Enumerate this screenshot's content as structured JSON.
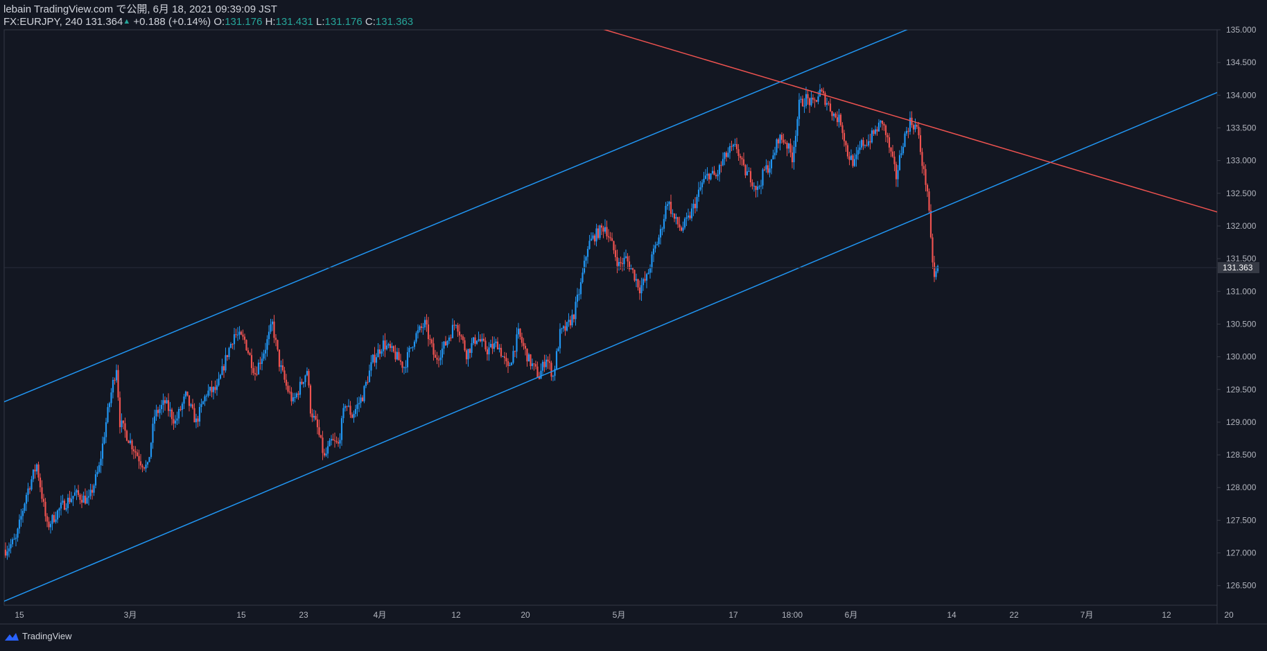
{
  "header": {
    "publisher": "lebain TradingView.com で公開, 6月 18, 2021 09:39:09 JST",
    "symbol": "FX:EURJPY, 240",
    "last": "131.364",
    "change": "+0.188 (+0.14%)",
    "o_label": "O:",
    "o_value": "131.176",
    "h_label": "H:",
    "h_value": "131.431",
    "l_label": "L:",
    "l_value": "131.176",
    "c_label": "C:",
    "c_value": "131.363"
  },
  "footer": {
    "brand": "TradingView"
  },
  "colors": {
    "background": "#131722",
    "up": "#2196f3",
    "down": "#ef5350",
    "grid_text": "#b2b5be",
    "axis_line": "#363a45"
  },
  "chart_data": {
    "type": "candlestick",
    "symbol": "FX:EURJPY",
    "interval": "240",
    "ylim": [
      126.2,
      135.0
    ],
    "y_ticks": [
      "126.500",
      "127.000",
      "127.500",
      "128.000",
      "128.500",
      "129.000",
      "129.500",
      "130.000",
      "130.500",
      "131.000",
      "131.500",
      "132.000",
      "132.500",
      "133.000",
      "133.500",
      "134.000",
      "134.500",
      "135.000"
    ],
    "x_ticks": [
      {
        "label": "15",
        "idx": 4
      },
      {
        "label": "3月",
        "idx": 36
      },
      {
        "label": "15",
        "idx": 68
      },
      {
        "label": "23",
        "idx": 86
      },
      {
        "label": "4月",
        "idx": 108
      },
      {
        "label": "12",
        "idx": 130
      },
      {
        "label": "20",
        "idx": 150
      },
      {
        "label": "5月",
        "idx": 177
      },
      {
        "label": "17",
        "idx": 210
      },
      {
        "label": "18:00",
        "idx": 227
      },
      {
        "label": "6月",
        "idx": 244
      },
      {
        "label": "14",
        "idx": 273
      },
      {
        "label": "22",
        "idx": 291
      },
      {
        "label": "7月",
        "idx": 312
      },
      {
        "label": "12",
        "idx": 335
      },
      {
        "label": "20",
        "idx": 353
      }
    ],
    "last_price": "131.363",
    "price_path": [
      [
        0,
        127.05
      ],
      [
        3,
        127.2
      ],
      [
        6,
        127.9
      ],
      [
        9,
        128.35
      ],
      [
        12,
        127.4
      ],
      [
        16,
        127.7
      ],
      [
        20,
        127.9
      ],
      [
        24,
        127.8
      ],
      [
        27,
        128.3
      ],
      [
        29,
        129.0
      ],
      [
        31,
        129.6
      ],
      [
        32,
        129.85
      ],
      [
        33,
        129.0
      ],
      [
        36,
        128.7
      ],
      [
        39,
        128.4
      ],
      [
        41,
        128.3
      ],
      [
        43,
        129.1
      ],
      [
        46,
        129.3
      ],
      [
        49,
        129.0
      ],
      [
        52,
        129.4
      ],
      [
        55,
        129.0
      ],
      [
        58,
        129.45
      ],
      [
        61,
        129.5
      ],
      [
        64,
        130.05
      ],
      [
        66,
        130.35
      ],
      [
        69,
        130.25
      ],
      [
        72,
        129.75
      ],
      [
        75,
        130.15
      ],
      [
        77,
        130.5
      ],
      [
        79,
        129.9
      ],
      [
        81,
        129.55
      ],
      [
        83,
        129.3
      ],
      [
        85,
        129.55
      ],
      [
        87,
        129.8
      ],
      [
        88,
        129.2
      ],
      [
        90,
        128.9
      ],
      [
        92,
        128.45
      ],
      [
        94,
        128.7
      ],
      [
        96,
        128.65
      ],
      [
        98,
        129.3
      ],
      [
        100,
        129.1
      ],
      [
        103,
        129.4
      ],
      [
        106,
        129.95
      ],
      [
        109,
        130.2
      ],
      [
        112,
        130.05
      ],
      [
        115,
        129.85
      ],
      [
        118,
        130.3
      ],
      [
        121,
        130.5
      ],
      [
        124,
        129.95
      ],
      [
        127,
        130.2
      ],
      [
        130,
        130.55
      ],
      [
        133,
        130.05
      ],
      [
        136,
        130.3
      ],
      [
        139,
        130.1
      ],
      [
        142,
        130.2
      ],
      [
        145,
        129.8
      ],
      [
        148,
        130.35
      ],
      [
        151,
        129.95
      ],
      [
        154,
        129.7
      ],
      [
        156,
        130.0
      ],
      [
        158,
        129.7
      ],
      [
        160,
        130.35
      ],
      [
        162,
        130.45
      ],
      [
        164,
        130.65
      ],
      [
        166,
        131.1
      ],
      [
        168,
        131.7
      ],
      [
        170,
        131.85
      ],
      [
        173,
        132.0
      ],
      [
        175,
        131.7
      ],
      [
        177,
        131.4
      ],
      [
        179,
        131.5
      ],
      [
        181,
        131.3
      ],
      [
        183,
        131.05
      ],
      [
        185,
        131.2
      ],
      [
        187,
        131.6
      ],
      [
        189,
        131.9
      ],
      [
        191,
        132.4
      ],
      [
        193,
        132.1
      ],
      [
        195,
        131.95
      ],
      [
        197,
        132.1
      ],
      [
        199,
        132.35
      ],
      [
        201,
        132.65
      ],
      [
        203,
        132.8
      ],
      [
        205,
        132.75
      ],
      [
        207,
        133.0
      ],
      [
        209,
        133.15
      ],
      [
        211,
        133.2
      ],
      [
        213,
        132.85
      ],
      [
        215,
        132.75
      ],
      [
        217,
        132.55
      ],
      [
        219,
        132.85
      ],
      [
        221,
        132.95
      ],
      [
        223,
        133.35
      ],
      [
        225,
        133.3
      ],
      [
        227,
        133.05
      ],
      [
        229,
        133.85
      ],
      [
        231,
        133.95
      ],
      [
        233,
        133.85
      ],
      [
        235,
        134.05
      ],
      [
        237,
        133.9
      ],
      [
        239,
        133.7
      ],
      [
        241,
        133.6
      ],
      [
        243,
        133.1
      ],
      [
        245,
        132.95
      ],
      [
        247,
        133.25
      ],
      [
        249,
        133.3
      ],
      [
        251,
        133.45
      ],
      [
        253,
        133.6
      ],
      [
        255,
        133.2
      ],
      [
        257,
        132.75
      ],
      [
        259,
        133.3
      ],
      [
        261,
        133.6
      ],
      [
        263,
        133.5
      ],
      [
        265,
        132.8
      ],
      [
        266,
        132.55
      ],
      [
        267,
        131.75
      ],
      [
        268,
        131.2
      ],
      [
        269,
        131.36
      ]
    ],
    "lines": [
      {
        "name": "channel-upper",
        "color": "#2196f3",
        "p1": [
          0,
          129.32
        ],
        "p2": [
          260,
          135.0
        ]
      },
      {
        "name": "channel-lower",
        "color": "#2196f3",
        "p1": [
          0,
          126.27
        ],
        "p2": [
          341,
          133.85
        ]
      },
      {
        "name": "resistance",
        "color": "#ef5350",
        "p1": [
          173,
          135.0
        ],
        "p2": [
          341,
          132.35
        ]
      }
    ]
  }
}
